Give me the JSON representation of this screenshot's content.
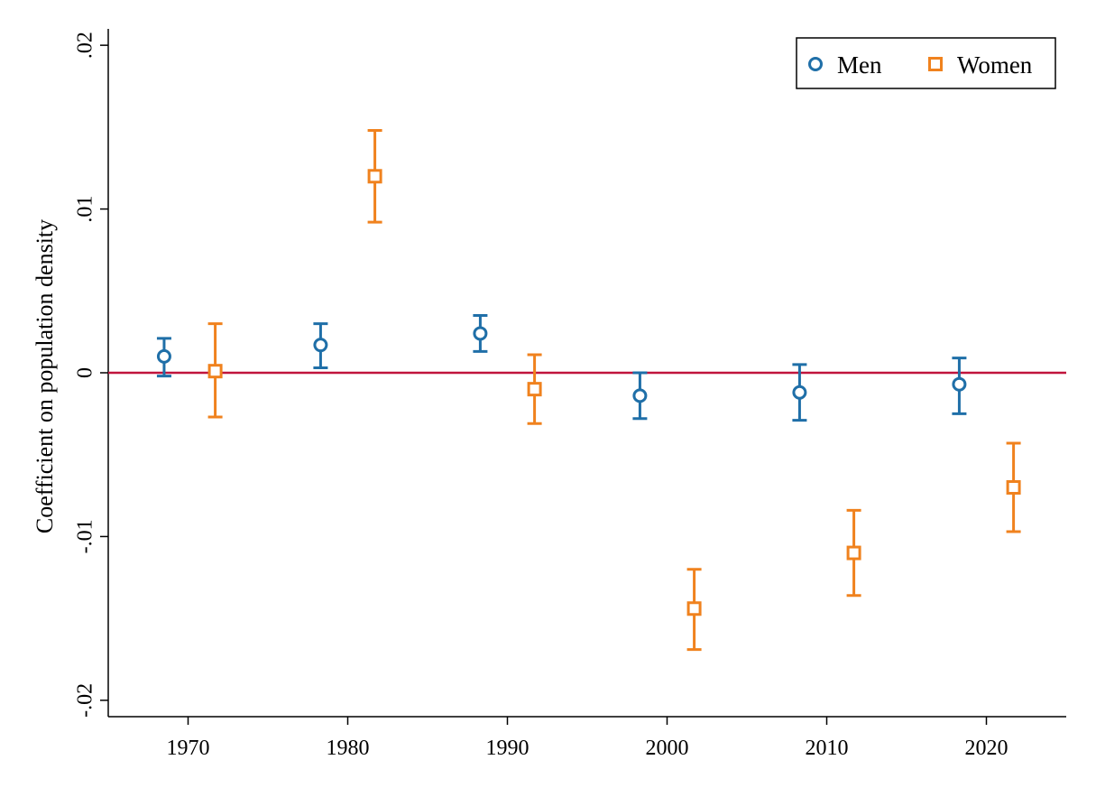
{
  "chart_data": {
    "type": "scatter",
    "title": "",
    "xlabel": "",
    "ylabel": "Coefficient on population density",
    "xlim": [
      1965,
      2025
    ],
    "ylim": [
      -0.021,
      0.021
    ],
    "xticks": [
      1970,
      1980,
      1990,
      2000,
      2010,
      2020
    ],
    "xtick_labels": [
      "1970",
      "1980",
      "1990",
      "2000",
      "2010",
      "2020"
    ],
    "yticks": [
      -0.02,
      -0.01,
      0,
      0.01,
      0.02
    ],
    "ytick_labels": [
      "-.02",
      "-.01",
      "0",
      ".01",
      ".02"
    ],
    "reference_line": {
      "y": 0,
      "color": "#c0143c"
    },
    "grid": false,
    "legend": {
      "position": "top-right",
      "entries": [
        "Men",
        "Women"
      ]
    },
    "series": [
      {
        "name": "Men",
        "marker": "circle",
        "color": "#1f6fa8",
        "points": [
          {
            "x": 1968.5,
            "y": 0.001,
            "lo": -0.0002,
            "hi": 0.0021
          },
          {
            "x": 1978.3,
            "y": 0.0017,
            "lo": 0.0003,
            "hi": 0.003
          },
          {
            "x": 1988.3,
            "y": 0.0024,
            "lo": 0.0013,
            "hi": 0.0035
          },
          {
            "x": 1998.3,
            "y": -0.0014,
            "lo": -0.0028,
            "hi": 0.0
          },
          {
            "x": 2008.3,
            "y": -0.0012,
            "lo": -0.0029,
            "hi": 0.0005
          },
          {
            "x": 2018.3,
            "y": -0.0007,
            "lo": -0.0025,
            "hi": 0.0009
          }
        ]
      },
      {
        "name": "Women",
        "marker": "square",
        "color": "#f0821e",
        "points": [
          {
            "x": 1971.7,
            "y": 0.0001,
            "lo": -0.0027,
            "hi": 0.003
          },
          {
            "x": 1981.7,
            "y": 0.012,
            "lo": 0.0092,
            "hi": 0.0148
          },
          {
            "x": 1991.7,
            "y": -0.001,
            "lo": -0.0031,
            "hi": 0.0011
          },
          {
            "x": 2001.7,
            "y": -0.0144,
            "lo": -0.0169,
            "hi": -0.012
          },
          {
            "x": 2011.7,
            "y": -0.011,
            "lo": -0.0136,
            "hi": -0.0084
          },
          {
            "x": 2021.7,
            "y": -0.007,
            "lo": -0.0097,
            "hi": -0.0043
          }
        ]
      }
    ]
  }
}
